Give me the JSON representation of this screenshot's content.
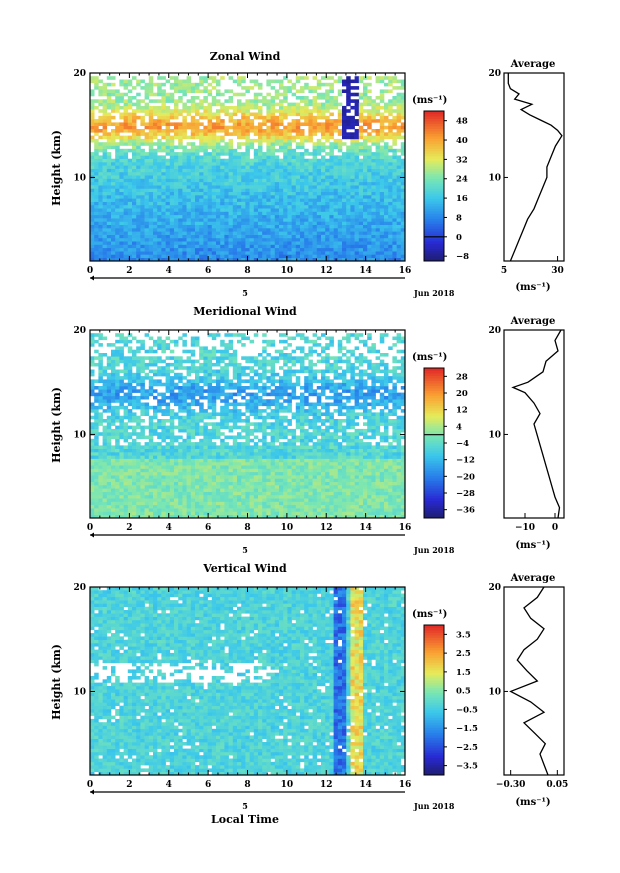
{
  "figure": {
    "time_axis_label": "Local Time"
  },
  "chart_data": [
    {
      "type": "heatmap",
      "title": "Zonal Wind",
      "ylabel": "Height (km)",
      "xlim": [
        0,
        16
      ],
      "ylim": [
        2,
        20
      ],
      "x_ticks": [
        0,
        2,
        4,
        6,
        8,
        10,
        12,
        14,
        16
      ],
      "y_ticks": [
        10,
        20
      ],
      "date_marker": "5",
      "date_label": "Jun 2018",
      "colorbar": {
        "unit": "(ms⁻¹)",
        "range": [
          -10,
          52
        ],
        "ticks": [
          -8,
          0,
          8,
          16,
          24,
          32,
          40,
          48
        ],
        "zero_line": 0
      },
      "profile": {
        "title": "Average",
        "xlabel": "(ms⁻¹)",
        "x_ticks": [
          5,
          30
        ],
        "xlim": [
          5,
          33
        ],
        "heights": [
          2,
          3,
          4,
          5,
          6,
          7,
          8,
          9,
          10,
          11,
          12,
          13,
          14,
          14.5,
          15,
          15.5,
          16,
          16.5,
          17,
          17.5,
          18,
          18.5,
          19,
          20
        ],
        "values": [
          8,
          10,
          12,
          14,
          16,
          19,
          21,
          23,
          25,
          25,
          27,
          29,
          32,
          30,
          27,
          22,
          17,
          13,
          18,
          10,
          12,
          8,
          7,
          7
        ]
      }
    },
    {
      "type": "heatmap",
      "title": "Meridional Wind",
      "ylabel": "Height (km)",
      "xlim": [
        0,
        16
      ],
      "ylim": [
        2,
        20
      ],
      "x_ticks": [
        0,
        2,
        4,
        6,
        8,
        10,
        12,
        14,
        16
      ],
      "y_ticks": [
        10,
        20
      ],
      "date_marker": "5",
      "date_label": "Jun 2018",
      "colorbar": {
        "unit": "(ms⁻¹)",
        "range": [
          -40,
          32
        ],
        "ticks": [
          -36,
          -28,
          -20,
          -12,
          -4,
          4,
          12,
          20,
          28
        ],
        "zero_line": 0
      },
      "profile": {
        "title": "Average",
        "xlabel": "(ms⁻¹)",
        "x_ticks": [
          -10,
          0
        ],
        "xlim": [
          -17,
          3
        ],
        "heights": [
          2,
          3,
          4,
          5,
          6,
          7,
          8,
          9,
          10,
          11,
          12,
          13,
          14,
          14.5,
          15,
          16,
          17,
          18,
          19,
          20
        ],
        "values": [
          1,
          1.5,
          0,
          -1,
          -2,
          -3,
          -4,
          -5,
          -6,
          -7,
          -5,
          -7,
          -10,
          -14,
          -9,
          -4,
          -3,
          1,
          0,
          2
        ]
      }
    },
    {
      "type": "heatmap",
      "title": "Vertical Wind",
      "ylabel": "Height (km)",
      "xlim": [
        0,
        16
      ],
      "ylim": [
        2,
        20
      ],
      "x_ticks": [
        0,
        2,
        4,
        6,
        8,
        10,
        12,
        14,
        16
      ],
      "y_ticks": [
        10,
        20
      ],
      "date_marker": "5",
      "date_label": "Jun 2018",
      "colorbar": {
        "unit": "(ms⁻¹)",
        "range": [
          -4,
          4
        ],
        "ticks": [
          -3.5,
          -2.5,
          -1.5,
          -0.5,
          0.5,
          1.5,
          2.5,
          3.5
        ]
      },
      "profile": {
        "title": "Average",
        "xlabel": "(ms⁻¹)",
        "x_ticks": [
          -0.3,
          0.05
        ],
        "xtick_labels": [
          "-0.30",
          "0.05"
        ],
        "xlim": [
          -0.35,
          0.1
        ],
        "heights": [
          2,
          3,
          4,
          5,
          6,
          7,
          8,
          9,
          10,
          11,
          12,
          13,
          14,
          15,
          16,
          17,
          18,
          19,
          20
        ],
        "values": [
          -0.02,
          -0.05,
          -0.08,
          -0.04,
          -0.12,
          -0.2,
          -0.05,
          -0.15,
          -0.3,
          -0.1,
          -0.18,
          -0.25,
          -0.2,
          -0.1,
          -0.05,
          -0.15,
          -0.2,
          -0.1,
          -0.05
        ]
      }
    }
  ]
}
